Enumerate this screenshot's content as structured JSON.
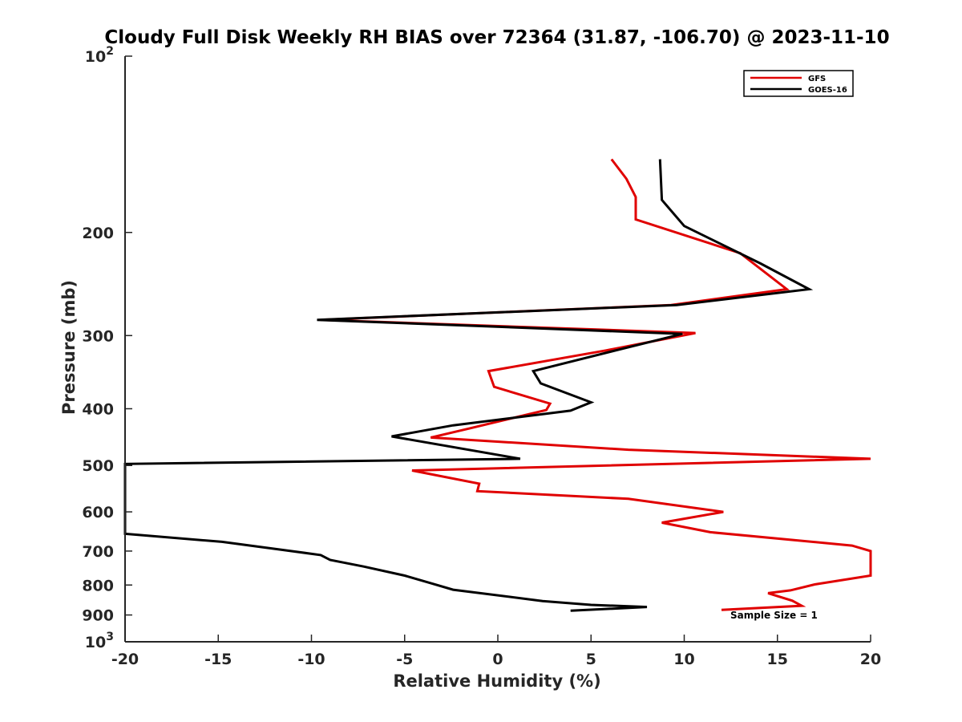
{
  "chart_data": {
    "type": "line",
    "title": "Cloudy Full Disk Weekly RH BIAS over 72364 (31.87, -106.70) @ 2023-11-10",
    "xlabel": "Relative Humidity (%)",
    "ylabel": "Pressure (mb)",
    "xlim": [
      -20,
      20
    ],
    "ylim": [
      100,
      1000
    ],
    "yscale": "log",
    "y_reversed": true,
    "x_ticks": [
      "-20",
      "-15",
      "-10",
      "-5",
      "0",
      "5",
      "10",
      "15",
      "20"
    ],
    "y_ticks": [
      {
        "base": "10",
        "exp": "2"
      },
      {
        "text": "200"
      },
      {
        "text": "300"
      },
      {
        "text": "400"
      },
      {
        "text": "500"
      },
      {
        "text": "600"
      },
      {
        "text": "700"
      },
      {
        "text": "800"
      },
      {
        "text": "900"
      },
      {
        "base": "10",
        "exp": "3"
      }
    ],
    "legend_position": "top-right",
    "annotation": "Sample Size = 1",
    "series": [
      {
        "name": "GFS",
        "color": "#e00000",
        "points": [
          [
            6.1,
            150
          ],
          [
            6.9,
            162
          ],
          [
            7.4,
            174
          ],
          [
            7.4,
            190
          ],
          [
            13.0,
            217
          ],
          [
            15.5,
            250
          ],
          [
            9.3,
            266
          ],
          [
            -9.5,
            282
          ],
          [
            10.6,
            297
          ],
          [
            5.8,
            318
          ],
          [
            -0.5,
            345
          ],
          [
            -0.2,
            367
          ],
          [
            2.8,
            392
          ],
          [
            2.6,
            402
          ],
          [
            -1.5,
            432
          ],
          [
            -3.6,
            448
          ],
          [
            7.0,
            470
          ],
          [
            20.0,
            487
          ],
          [
            -4.6,
            510
          ],
          [
            -1.0,
            537
          ],
          [
            -1.1,
            553
          ],
          [
            7.0,
            570
          ],
          [
            12.1,
            600
          ],
          [
            8.8,
            626
          ],
          [
            11.4,
            650
          ],
          [
            19.0,
            685
          ],
          [
            20.0,
            700
          ],
          [
            20.0,
            771
          ],
          [
            17.0,
            798
          ],
          [
            15.7,
            817
          ],
          [
            14.5,
            826
          ],
          [
            15.8,
            851
          ],
          [
            16.3,
            868
          ],
          [
            12.0,
            882
          ]
        ]
      },
      {
        "name": "GOES-16",
        "color": "#000000",
        "points": [
          [
            8.7,
            150
          ],
          [
            8.8,
            176
          ],
          [
            10.0,
            195
          ],
          [
            14.1,
            226
          ],
          [
            16.7,
            250
          ],
          [
            9.6,
            266
          ],
          [
            -9.7,
            282
          ],
          [
            9.9,
            298
          ],
          [
            6.5,
            317
          ],
          [
            1.9,
            345
          ],
          [
            2.3,
            362
          ],
          [
            5.0,
            390
          ],
          [
            3.9,
            403
          ],
          [
            -2.4,
            427
          ],
          [
            -5.7,
            446
          ],
          [
            1.2,
            487
          ],
          [
            -20.0,
            497
          ],
          [
            -20.0,
            654
          ],
          [
            -14.8,
            675
          ],
          [
            -11.5,
            697
          ],
          [
            -9.5,
            711
          ],
          [
            -9.0,
            725
          ],
          [
            -7.2,
            744
          ],
          [
            -5.0,
            771
          ],
          [
            -3.6,
            794
          ],
          [
            -2.4,
            815
          ],
          [
            2.4,
            852
          ],
          [
            5.0,
            865
          ],
          [
            8.0,
            872
          ],
          [
            3.9,
            885
          ]
        ]
      }
    ]
  }
}
